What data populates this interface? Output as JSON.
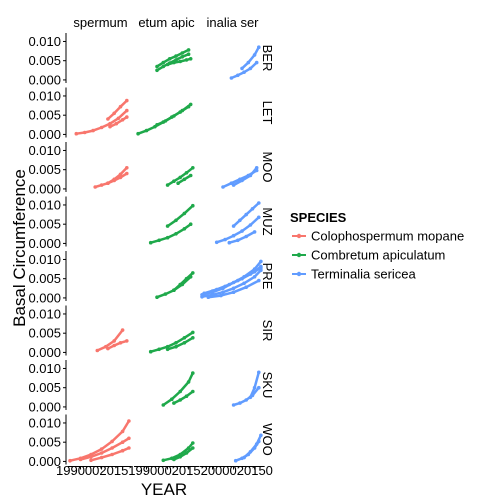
{
  "chart_data": {
    "type": "line",
    "xlabel": "YEAR",
    "ylabel": "Basal Circumference",
    "columns": [
      "Colophospermum mopane",
      "Combretum apiculatum",
      "Terminalia sericea"
    ],
    "column_strip_labels": [
      "spermum",
      "etum apic",
      "inalia ser"
    ],
    "rows": [
      "BER",
      "LET",
      "MOO",
      "MUZ",
      "PRE",
      "SIR",
      "SKU",
      "WOO"
    ],
    "y_ticks": [
      0.0,
      0.005,
      0.01
    ],
    "y_tick_labels": [
      "0.000",
      "0.005",
      "0.010"
    ],
    "ylim": [
      -0.0008,
      0.0122
    ],
    "xlim": [
      1985,
      2014
    ],
    "x_tick_labels_printed": [
      "1990",
      "2000",
      "2010",
      "1990",
      "2000",
      "2010",
      "1990",
      "2000",
      "2010"
    ],
    "x_ticks": [
      1990,
      2000,
      2010
    ],
    "x_tick_labels_display": [
      "199000201519900020152000020150"
    ],
    "legend": {
      "title": "SPECIES",
      "position": "right",
      "entries": [
        {
          "name": "Colophospermum mopane",
          "color": "#F8766D"
        },
        {
          "name": "Combretum apiculatum",
          "color": "#1FA94B"
        },
        {
          "name": "Terminalia sericea",
          "color": "#619CFF"
        }
      ]
    },
    "grid": false,
    "series": [
      {
        "row": "BER",
        "col": 1,
        "x": [
          1995,
          1998,
          2001,
          2004,
          2007,
          2010
        ],
        "y": [
          0.0035,
          0.0045,
          0.0055,
          0.0062,
          0.007,
          0.0078
        ]
      },
      {
        "row": "BER",
        "col": 1,
        "x": [
          1995,
          1998,
          2001,
          2004,
          2007,
          2010
        ],
        "y": [
          0.0025,
          0.0035,
          0.0044,
          0.0052,
          0.006,
          0.0067
        ]
      },
      {
        "row": "BER",
        "col": 1,
        "x": [
          2000,
          2003,
          2006,
          2009,
          2011
        ],
        "y": [
          0.004,
          0.0045,
          0.0048,
          0.0052,
          0.0055
        ]
      },
      {
        "row": "BER",
        "col": 2,
        "x": [
          1999,
          2002,
          2005,
          2008,
          2011
        ],
        "y": [
          0.0005,
          0.0012,
          0.002,
          0.003,
          0.0045
        ]
      },
      {
        "row": "BER",
        "col": 2,
        "x": [
          2004,
          2007,
          2010,
          2012
        ],
        "y": [
          0.003,
          0.0045,
          0.0065,
          0.0085
        ]
      },
      {
        "row": "LET",
        "col": 0,
        "x": [
          1988,
          1992,
          1996,
          2000,
          2004,
          2008,
          2012
        ],
        "y": [
          0.0002,
          0.0005,
          0.001,
          0.0018,
          0.0028,
          0.0042,
          0.0062
        ]
      },
      {
        "row": "LET",
        "col": 0,
        "x": [
          2003,
          2006,
          2009,
          2012
        ],
        "y": [
          0.004,
          0.0055,
          0.0072,
          0.0088
        ]
      },
      {
        "row": "LET",
        "col": 0,
        "x": [
          2004,
          2007,
          2010,
          2012
        ],
        "y": [
          0.002,
          0.0028,
          0.0038,
          0.0045
        ]
      },
      {
        "row": "LET",
        "col": 1,
        "x": [
          1986,
          1990,
          1994,
          1998,
          2002,
          2006,
          2010
        ],
        "y": [
          0.0002,
          0.001,
          0.002,
          0.0032,
          0.0045,
          0.0058,
          0.0072
        ]
      },
      {
        "row": "LET",
        "col": 1,
        "x": [
          1995,
          1999,
          2003,
          2007,
          2011
        ],
        "y": [
          0.0025,
          0.0035,
          0.0048,
          0.0062,
          0.0078
        ]
      },
      {
        "row": "MOO",
        "col": 0,
        "x": [
          1997,
          2000,
          2003,
          2006,
          2009,
          2012
        ],
        "y": [
          0.0005,
          0.001,
          0.0015,
          0.0022,
          0.003,
          0.004
        ]
      },
      {
        "row": "MOO",
        "col": 0,
        "x": [
          2003,
          2006,
          2009,
          2012
        ],
        "y": [
          0.0015,
          0.0025,
          0.0038,
          0.0055
        ]
      },
      {
        "row": "MOO",
        "col": 1,
        "x": [
          2000,
          2003,
          2006,
          2009,
          2012
        ],
        "y": [
          0.001,
          0.002,
          0.003,
          0.0042,
          0.0055
        ]
      },
      {
        "row": "MOO",
        "col": 1,
        "x": [
          2005,
          2008,
          2011
        ],
        "y": [
          0.0015,
          0.0025,
          0.0035
        ]
      },
      {
        "row": "MOO",
        "col": 2,
        "x": [
          1995,
          1999,
          2003,
          2007,
          2011
        ],
        "y": [
          0.0005,
          0.0015,
          0.0025,
          0.0035,
          0.0048
        ]
      },
      {
        "row": "MOO",
        "col": 2,
        "x": [
          2000,
          2004,
          2008,
          2011
        ],
        "y": [
          0.001,
          0.0022,
          0.0035,
          0.0055
        ]
      },
      {
        "row": "MUZ",
        "col": 1,
        "x": [
          1992,
          1996,
          2000,
          2004,
          2008,
          2011
        ],
        "y": [
          0.0002,
          0.0008,
          0.0015,
          0.0025,
          0.0038,
          0.005
        ]
      },
      {
        "row": "MUZ",
        "col": 1,
        "x": [
          2000,
          2004,
          2008,
          2012
        ],
        "y": [
          0.0045,
          0.006,
          0.0078,
          0.0098
        ]
      },
      {
        "row": "MUZ",
        "col": 2,
        "x": [
          1992,
          1996,
          2000,
          2004,
          2008,
          2012
        ],
        "y": [
          0.0003,
          0.001,
          0.002,
          0.0032,
          0.0048,
          0.0068
        ]
      },
      {
        "row": "MUZ",
        "col": 2,
        "x": [
          2000,
          2003,
          2006,
          2009,
          2012
        ],
        "y": [
          0.0045,
          0.006,
          0.0075,
          0.009,
          0.0105
        ]
      },
      {
        "row": "MUZ",
        "col": 2,
        "x": [
          1998,
          2002,
          2006,
          2010
        ],
        "y": [
          0.0002,
          0.0008,
          0.0018,
          0.003
        ]
      },
      {
        "row": "PRE",
        "col": 1,
        "x": [
          1995,
          1999,
          2003,
          2007,
          2011
        ],
        "y": [
          0.0002,
          0.001,
          0.002,
          0.0035,
          0.0055
        ]
      },
      {
        "row": "PRE",
        "col": 1,
        "x": [
          2003,
          2006,
          2009,
          2012
        ],
        "y": [
          0.002,
          0.0035,
          0.005,
          0.0065
        ]
      },
      {
        "row": "PRE",
        "col": 2,
        "x": [
          1985,
          1990,
          1995,
          2000,
          2005,
          2010,
          2013
        ],
        "y": [
          0.0003,
          0.0008,
          0.0015,
          0.0025,
          0.0038,
          0.0055,
          0.0072
        ]
      },
      {
        "row": "PRE",
        "col": 2,
        "x": [
          1985,
          1990,
          1995,
          2000,
          2005,
          2010,
          2013
        ],
        "y": [
          0.0008,
          0.0015,
          0.0025,
          0.004,
          0.0055,
          0.0075,
          0.0095
        ]
      },
      {
        "row": "PRE",
        "col": 2,
        "x": [
          1986,
          1992,
          1998,
          2004,
          2010,
          2013
        ],
        "y": [
          0.0012,
          0.0022,
          0.0035,
          0.005,
          0.0068,
          0.0082
        ]
      },
      {
        "row": "PRE",
        "col": 2,
        "x": [
          1988,
          1994,
          2000,
          2006,
          2012
        ],
        "y": [
          0.0002,
          0.0006,
          0.0015,
          0.0028,
          0.0045
        ]
      },
      {
        "row": "PRE",
        "col": 2,
        "x": [
          1990,
          1996,
          2002,
          2008,
          2013
        ],
        "y": [
          0.0018,
          0.003,
          0.0045,
          0.0062,
          0.0078
        ]
      },
      {
        "row": "SIR",
        "col": 0,
        "x": [
          1998,
          2002,
          2006,
          2010
        ],
        "y": [
          0.0005,
          0.0015,
          0.003,
          0.0058
        ]
      },
      {
        "row": "SIR",
        "col": 0,
        "x": [
          2003,
          2006,
          2009,
          2012
        ],
        "y": [
          0.001,
          0.0018,
          0.0025,
          0.003
        ]
      },
      {
        "row": "SIR",
        "col": 1,
        "x": [
          1992,
          1996,
          2000,
          2004,
          2008,
          2012
        ],
        "y": [
          0.0002,
          0.0008,
          0.0015,
          0.0025,
          0.0038,
          0.0052
        ]
      },
      {
        "row": "SIR",
        "col": 1,
        "x": [
          2000,
          2004,
          2008,
          2012
        ],
        "y": [
          0.0008,
          0.0015,
          0.0025,
          0.0038
        ]
      },
      {
        "row": "SKU",
        "col": 1,
        "x": [
          1998,
          2002,
          2006,
          2010,
          2012
        ],
        "y": [
          0.0005,
          0.002,
          0.004,
          0.0065,
          0.0088
        ]
      },
      {
        "row": "SKU",
        "col": 1,
        "x": [
          2003,
          2006,
          2009,
          2012
        ],
        "y": [
          0.001,
          0.0018,
          0.0028,
          0.004
        ]
      },
      {
        "row": "SKU",
        "col": 2,
        "x": [
          2000,
          2003,
          2006,
          2009,
          2012
        ],
        "y": [
          0.0005,
          0.001,
          0.0018,
          0.003,
          0.005
        ]
      },
      {
        "row": "SKU",
        "col": 2,
        "x": [
          2008,
          2010,
          2012
        ],
        "y": [
          0.0025,
          0.005,
          0.009
        ]
      },
      {
        "row": "WOO",
        "col": 0,
        "x": [
          1985,
          1990,
          1995,
          2000,
          2005,
          2010,
          2013
        ],
        "y": [
          0.0002,
          0.0008,
          0.0018,
          0.0032,
          0.0052,
          0.0078,
          0.0105
        ]
      },
      {
        "row": "WOO",
        "col": 0,
        "x": [
          1990,
          1995,
          2000,
          2005,
          2010,
          2013
        ],
        "y": [
          0.0005,
          0.0012,
          0.0022,
          0.0035,
          0.005,
          0.006
        ]
      },
      {
        "row": "WOO",
        "col": 0,
        "x": [
          1995,
          2000,
          2005,
          2010,
          2013
        ],
        "y": [
          0.0003,
          0.001,
          0.0018,
          0.0028,
          0.0035
        ]
      },
      {
        "row": "WOO",
        "col": 1,
        "x": [
          1998,
          2002,
          2006,
          2010,
          2012
        ],
        "y": [
          0.0003,
          0.0008,
          0.0018,
          0.0035,
          0.0048
        ]
      },
      {
        "row": "WOO",
        "col": 1,
        "x": [
          2003,
          2006,
          2009,
          2012
        ],
        "y": [
          0.0005,
          0.0012,
          0.0022,
          0.0035
        ]
      },
      {
        "row": "WOO",
        "col": 2,
        "x": [
          2001,
          2004,
          2007,
          2010,
          2012
        ],
        "y": [
          0.0002,
          0.0008,
          0.0018,
          0.0035,
          0.0052
        ]
      },
      {
        "row": "WOO",
        "col": 2,
        "x": [
          2005,
          2008,
          2011,
          2013
        ],
        "y": [
          0.001,
          0.0025,
          0.0045,
          0.0068
        ]
      }
    ]
  }
}
